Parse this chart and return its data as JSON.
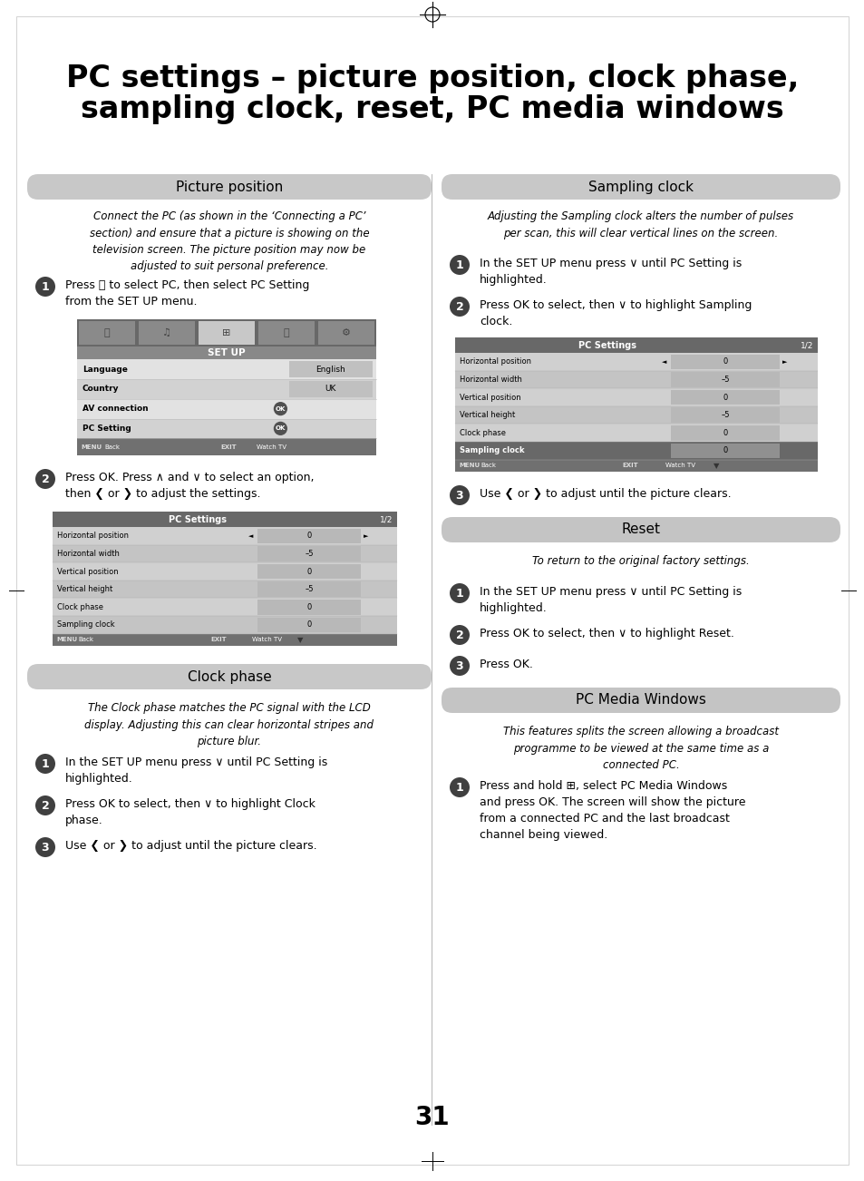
{
  "title_line1": "PC settings – picture position, clock phase,",
  "title_line2": "sampling clock, reset, PC media windows",
  "page_number": "31",
  "bg_color": "#ffffff",
  "section_hdr_bg": "#c8c8c8",
  "reset_hdr_bg": "#b8b8b8",
  "pcmedia_hdr_bg": "#c0c0c0",
  "num_badge_color": "#404040",
  "screen_outer": "#606060",
  "screen_icon_bg": "#707070",
  "screen_icon_sel": "#c8c8c8",
  "screen_header_bg": "#808080",
  "screen_row_light": "#e0e0e0",
  "screen_row_dark": "#d0d0d0",
  "screen_bottom_bg": "#707070",
  "screen_vbox": "#b8b8b8",
  "pc_settings_hdr": "#707070",
  "pc_settings_row1": "#c8c8c8",
  "pc_settings_row2": "#d8d8d8",
  "pc_settings_highlight": "#606868",
  "pc_settings_vbox": "#aaaaaa",
  "pc_settings_vbox_hl": "#909090"
}
